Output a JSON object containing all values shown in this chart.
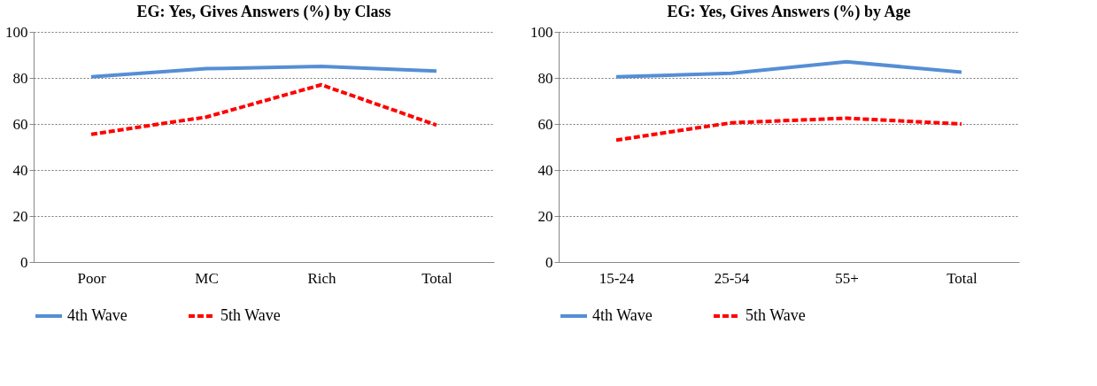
{
  "chart_data": [
    {
      "type": "line",
      "title": "EG: Yes, Gives Answers (%) by Class",
      "categories": [
        "Poor",
        "MC",
        "Rich",
        "Total"
      ],
      "ylim": [
        0,
        100
      ],
      "yticks": [
        0,
        20,
        40,
        60,
        80,
        100
      ],
      "grid": "y",
      "legend": "bottom",
      "series": [
        {
          "name": "4th Wave",
          "color": "#558ed5",
          "line_style": "solid",
          "values": [
            80.5,
            84,
            85,
            83
          ]
        },
        {
          "name": "5th Wave",
          "color": "#ff0000",
          "line_style": "dashed",
          "values": [
            55.5,
            63,
            77,
            59.5
          ]
        }
      ]
    },
    {
      "type": "line",
      "title": "EG: Yes, Gives Answers  (%) by Age",
      "categories": [
        "15-24",
        "25-54",
        "55+",
        "Total"
      ],
      "ylim": [
        0,
        100
      ],
      "yticks": [
        0,
        20,
        40,
        60,
        80,
        100
      ],
      "grid": "y",
      "legend": "bottom",
      "series": [
        {
          "name": "4th Wave",
          "color": "#558ed5",
          "line_style": "solid",
          "values": [
            80.5,
            82,
            87,
            82.5
          ]
        },
        {
          "name": "5th Wave",
          "color": "#ff0000",
          "line_style": "dashed",
          "values": [
            53,
            60.5,
            62.5,
            60
          ]
        }
      ]
    }
  ]
}
